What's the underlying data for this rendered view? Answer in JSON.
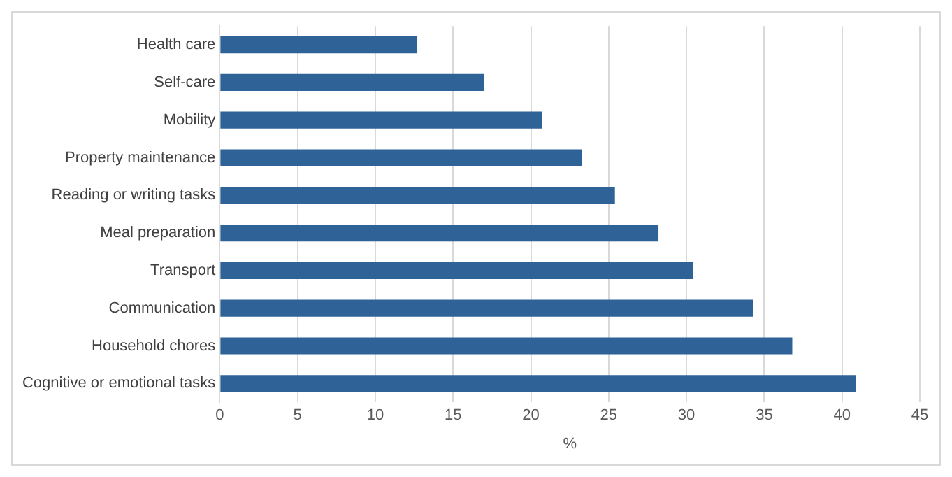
{
  "chart_data": {
    "type": "bar",
    "orientation": "horizontal",
    "xlabel": "%",
    "categories": [
      "Health care",
      "Self-care",
      "Mobility",
      "Property maintenance",
      "Reading or writing tasks",
      "Meal preparation",
      "Transport",
      "Communication",
      "Household chores",
      "Cognitive or emotional tasks"
    ],
    "values": [
      12.7,
      17.0,
      20.7,
      23.3,
      25.4,
      28.2,
      30.4,
      34.3,
      36.8,
      40.9
    ],
    "color": "#2f6398",
    "xlim": [
      0,
      45
    ],
    "xticks": [
      0,
      5,
      10,
      15,
      20,
      25,
      30,
      35,
      40,
      45
    ],
    "grid": "x",
    "legend": false
  }
}
